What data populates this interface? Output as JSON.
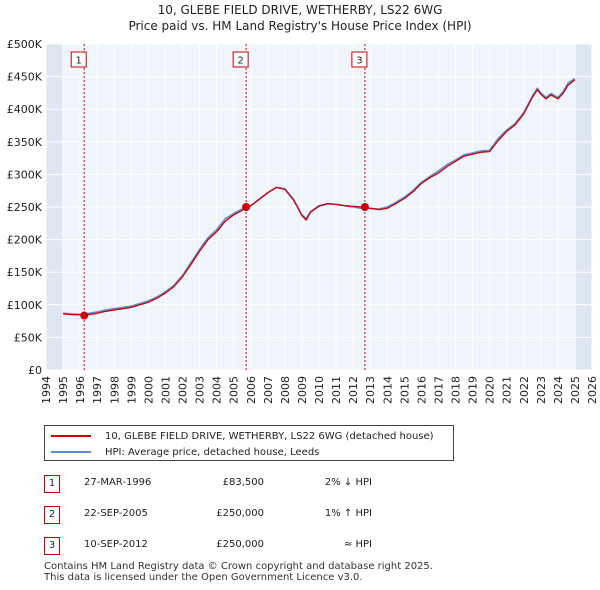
{
  "title_line1": "10, GLEBE FIELD DRIVE, WETHERBY, LS22 6WG",
  "title_line2": "Price paid vs. HM Land Registry's House Price Index (HPI)",
  "colors": {
    "property": "#cc0000",
    "hpi": "#5b8fd6",
    "shade": "#dde6f3",
    "plot_bg": "#f0f4fb",
    "grid": "#ffffff",
    "vline": "#cc0000"
  },
  "legend": {
    "property_label": "10, GLEBE FIELD DRIVE, WETHERBY, LS22 6WG (detached house)",
    "hpi_label": "HPI: Average price, detached house, Leeds"
  },
  "transactions": [
    {
      "num": "1",
      "date": "27-MAR-1996",
      "price": "£83,500",
      "relation": "2% ↓ HPI"
    },
    {
      "num": "2",
      "date": "22-SEP-2005",
      "price": "£250,000",
      "relation": "1% ↑ HPI"
    },
    {
      "num": "3",
      "date": "10-SEP-2012",
      "price": "£250,000",
      "relation": "≈ HPI"
    }
  ],
  "footer_line1": "Contains HM Land Registry data © Crown copyright and database right 2025.",
  "footer_line2": "This data is licensed under the Open Government Licence v3.0.",
  "chart_data": {
    "type": "line",
    "title": "10, GLEBE FIELD DRIVE, WETHERBY, LS22 6WG — Price paid vs. HM Land Registry's House Price Index (HPI)",
    "xlabel": "",
    "ylabel": "",
    "xlim": [
      1994,
      2026
    ],
    "ylim": [
      0,
      500000
    ],
    "x_ticks": [
      1994,
      1995,
      1996,
      1997,
      1998,
      1999,
      2000,
      2001,
      2002,
      2003,
      2004,
      2005,
      2006,
      2007,
      2008,
      2009,
      2010,
      2011,
      2012,
      2013,
      2014,
      2015,
      2016,
      2017,
      2018,
      2019,
      2020,
      2021,
      2022,
      2023,
      2024,
      2025,
      2026
    ],
    "y_ticks": [
      0,
      50000,
      100000,
      150000,
      200000,
      250000,
      300000,
      350000,
      400000,
      450000,
      500000
    ],
    "y_tick_labels": [
      "£0",
      "£50K",
      "£100K",
      "£150K",
      "£200K",
      "£250K",
      "£300K",
      "£350K",
      "£400K",
      "£450K",
      "£500K"
    ],
    "shaded_ranges": [
      [
        1994,
        1995.0
      ],
      [
        2025.0,
        2026
      ]
    ],
    "series": [
      {
        "name": "HPI: Average price, detached house, Leeds",
        "x": [
          1995.0,
          1995.5,
          1996.0,
          1996.5,
          1997.0,
          1997.5,
          1998.0,
          1998.5,
          1999.0,
          1999.5,
          2000.0,
          2000.5,
          2001.0,
          2001.5,
          2002.0,
          2002.5,
          2003.0,
          2003.5,
          2004.0,
          2004.5,
          2005.0,
          2005.5,
          2006.0,
          2006.5,
          2007.0,
          2007.5,
          2008.0,
          2008.5,
          2009.0,
          2009.25,
          2009.5,
          2010.0,
          2010.5,
          2011.0,
          2011.5,
          2012.0,
          2012.5,
          2013.0,
          2013.5,
          2014.0,
          2014.5,
          2015.0,
          2015.5,
          2016.0,
          2016.5,
          2017.0,
          2017.5,
          2018.0,
          2018.5,
          2019.0,
          2019.5,
          2020.0,
          2020.5,
          2021.0,
          2021.5,
          2022.0,
          2022.5,
          2022.8,
          2023.0,
          2023.3,
          2023.6,
          2024.0,
          2024.3,
          2024.6,
          2025.0
        ],
        "values": [
          87000,
          86000,
          85500,
          87000,
          89000,
          92000,
          94000,
          96000,
          98000,
          102000,
          106000,
          112000,
          120000,
          130000,
          145000,
          165000,
          185000,
          203000,
          215000,
          232000,
          240000,
          247000,
          252000,
          262000,
          272000,
          280000,
          278000,
          262000,
          238000,
          232000,
          243000,
          252000,
          255000,
          254000,
          252000,
          250000,
          248000,
          248000,
          247000,
          250000,
          257000,
          265000,
          275000,
          288000,
          297000,
          305000,
          315000,
          322000,
          330000,
          333000,
          336000,
          337000,
          355000,
          368000,
          378000,
          395000,
          420000,
          432000,
          425000,
          418000,
          424000,
          418000,
          427000,
          440000,
          447000
        ]
      },
      {
        "name": "10, GLEBE FIELD DRIVE, WETHERBY, LS22 6WG (detached house)",
        "x": [
          1995.0,
          1995.5,
          1996.0,
          1996.24,
          1996.5,
          1997.0,
          1997.5,
          1998.0,
          1998.5,
          1999.0,
          1999.5,
          2000.0,
          2000.5,
          2001.0,
          2001.5,
          2002.0,
          2002.5,
          2003.0,
          2003.5,
          2004.0,
          2004.5,
          2005.0,
          2005.5,
          2005.73,
          2006.0,
          2006.5,
          2007.0,
          2007.5,
          2008.0,
          2008.5,
          2009.0,
          2009.25,
          2009.5,
          2010.0,
          2010.5,
          2011.0,
          2011.5,
          2012.0,
          2012.5,
          2012.69,
          2013.0,
          2013.5,
          2014.0,
          2014.5,
          2015.0,
          2015.5,
          2016.0,
          2016.5,
          2017.0,
          2017.5,
          2018.0,
          2018.5,
          2019.0,
          2019.5,
          2020.0,
          2020.5,
          2021.0,
          2021.5,
          2022.0,
          2022.5,
          2022.8,
          2023.0,
          2023.3,
          2023.6,
          2024.0,
          2024.3,
          2024.6,
          2025.0
        ],
        "values": [
          86000,
          85000,
          84500,
          83500,
          85000,
          87000,
          90000,
          92000,
          94000,
          96000,
          100000,
          104000,
          110000,
          118000,
          128000,
          143000,
          162000,
          182000,
          200000,
          212000,
          228000,
          238000,
          245000,
          250000,
          252000,
          262000,
          272000,
          280000,
          277000,
          261000,
          237000,
          230000,
          242000,
          251000,
          255000,
          254000,
          252000,
          251000,
          250000,
          250000,
          248000,
          246000,
          248000,
          255000,
          263000,
          273000,
          286000,
          295000,
          302000,
          312000,
          320000,
          328000,
          331000,
          334000,
          335000,
          352000,
          366000,
          376000,
          393000,
          418000,
          430000,
          423000,
          416000,
          422000,
          416000,
          424000,
          437000,
          445000
        ]
      }
    ],
    "markers": [
      {
        "label": "1",
        "x": 1996.24,
        "y": 83500
      },
      {
        "label": "2",
        "x": 2005.73,
        "y": 250000
      },
      {
        "label": "3",
        "x": 2012.69,
        "y": 250000
      }
    ]
  }
}
